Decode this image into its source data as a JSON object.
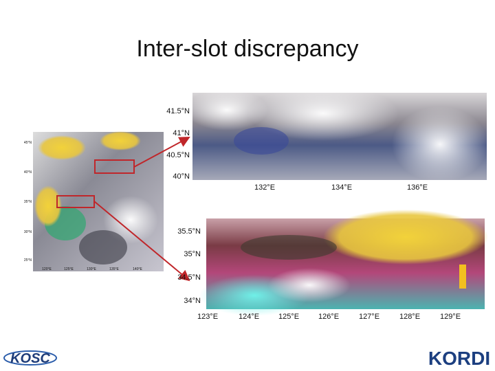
{
  "title": "Inter-slot discrepancy",
  "left_map": {
    "lat_labels": [
      "45°N",
      "40°N",
      "35°N",
      "30°N",
      "25°N"
    ],
    "lon_labels": [
      "120°E",
      "125°E",
      "130°E",
      "135°E",
      "140°E"
    ]
  },
  "top_image": {
    "lat_labels": [
      "41.5°N",
      "41°N",
      "40.5°N",
      "40°N"
    ],
    "lon_labels": [
      "132°E",
      "134°E",
      "136°E"
    ]
  },
  "bottom_image": {
    "lat_labels": [
      "35.5°N",
      "35°N",
      "34.5°N",
      "34°N"
    ],
    "lon_labels": [
      "123°E",
      "124°E",
      "125°E",
      "126°E",
      "127°E",
      "128°E",
      "129°E"
    ]
  },
  "logos": {
    "left": "KOSC",
    "right": "KORDI"
  }
}
